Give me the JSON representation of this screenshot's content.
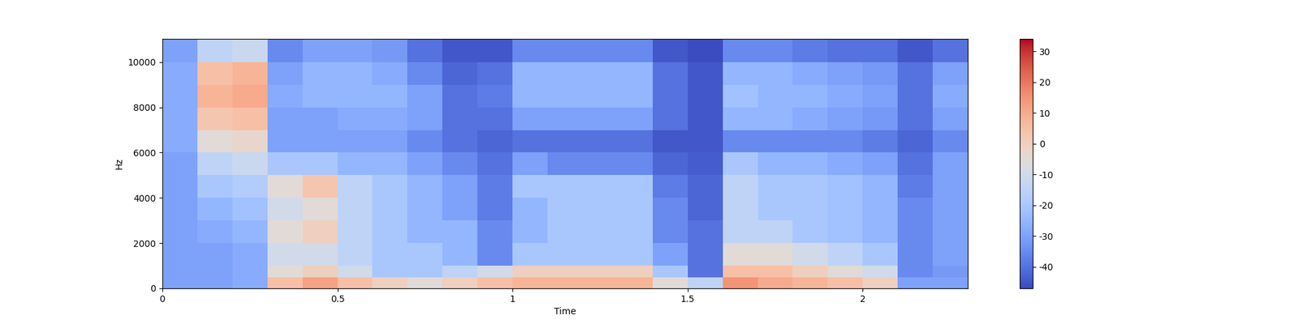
{
  "chart_data": {
    "type": "heatmap",
    "x_label": "Time",
    "y_label": "Hz",
    "x_edges": [
      0,
      0.1,
      0.2,
      0.3,
      0.4,
      0.5,
      0.6,
      0.7,
      0.8,
      0.9,
      1.0,
      1.1,
      1.2,
      1.3,
      1.4,
      1.5,
      1.6,
      1.7,
      1.8,
      1.9,
      2.0,
      2.1,
      2.2,
      2.3
    ],
    "y_edges": [
      0,
      500,
      1000,
      2000,
      3000,
      4000,
      5000,
      6000,
      7000,
      8000,
      9000,
      10000,
      11025
    ],
    "cells": [
      [
        -30,
        -30,
        -28,
        5,
        12,
        5,
        0,
        -5,
        0,
        5,
        8,
        8,
        8,
        8,
        -5,
        -15,
        15,
        10,
        8,
        5,
        0,
        -30,
        -30
      ],
      [
        -30,
        -30,
        -28,
        -5,
        0,
        -10,
        -20,
        -20,
        -15,
        -10,
        0,
        0,
        0,
        0,
        -20,
        -40,
        5,
        5,
        0,
        -5,
        -10,
        -35,
        -32
      ],
      [
        -30,
        -30,
        -28,
        -10,
        -10,
        -15,
        -20,
        -20,
        -25,
        -35,
        -20,
        -20,
        -20,
        -20,
        -30,
        -40,
        -5,
        -5,
        -10,
        -15,
        -20,
        -35,
        -30
      ],
      [
        -30,
        -28,
        -25,
        -5,
        0,
        -15,
        -20,
        -25,
        -25,
        -35,
        -25,
        -20,
        -20,
        -20,
        -35,
        -40,
        -15,
        -15,
        -20,
        -22,
        -25,
        -35,
        -30
      ],
      [
        -30,
        -25,
        -22,
        -10,
        -5,
        -15,
        -20,
        -25,
        -30,
        -38,
        -25,
        -20,
        -20,
        -20,
        -35,
        -42,
        -15,
        -20,
        -20,
        -22,
        -25,
        -35,
        -30
      ],
      [
        -30,
        -20,
        -18,
        -5,
        3,
        -15,
        -20,
        -25,
        -30,
        -38,
        -20,
        -20,
        -20,
        -20,
        -38,
        -42,
        -15,
        -20,
        -20,
        -22,
        -25,
        -38,
        -30
      ],
      [
        -30,
        -15,
        -12,
        -20,
        -20,
        -25,
        -25,
        -30,
        -35,
        -40,
        -30,
        -35,
        -35,
        -35,
        -42,
        -44,
        -20,
        -25,
        -25,
        -28,
        -30,
        -40,
        -30
      ],
      [
        -28,
        -5,
        -3,
        -30,
        -30,
        -30,
        -30,
        -35,
        -40,
        -42,
        -40,
        -40,
        -40,
        -40,
        -45,
        -45,
        -35,
        -35,
        -35,
        -35,
        -38,
        -42,
        -35
      ],
      [
        -28,
        3,
        5,
        -30,
        -30,
        -28,
        -28,
        -30,
        -40,
        -40,
        -30,
        -30,
        -30,
        -30,
        -40,
        -45,
        -25,
        -25,
        -28,
        -30,
        -32,
        -40,
        -30
      ],
      [
        -28,
        8,
        10,
        -28,
        -25,
        -25,
        -25,
        -30,
        -40,
        -38,
        -25,
        -25,
        -25,
        -25,
        -40,
        -45,
        -22,
        -25,
        -25,
        -28,
        -30,
        -40,
        -28
      ],
      [
        -28,
        5,
        8,
        -30,
        -25,
        -25,
        -28,
        -35,
        -42,
        -40,
        -25,
        -25,
        -25,
        -25,
        -40,
        -45,
        -25,
        -25,
        -28,
        -30,
        -32,
        -40,
        -30
      ],
      [
        -30,
        -15,
        -12,
        -35,
        -30,
        -30,
        -32,
        -40,
        -45,
        -45,
        -35,
        -35,
        -35,
        -35,
        -45,
        -47,
        -35,
        -35,
        -38,
        -40,
        -40,
        -45,
        -40
      ]
    ],
    "color": "coolwarm",
    "xlim": [
      0,
      2.3
    ],
    "xticks": [
      0,
      0.5,
      1,
      1.5,
      2
    ],
    "ylim": [
      0,
      11025
    ],
    "yticks": [
      0,
      2000,
      4000,
      6000,
      8000,
      10000
    ],
    "colorbar_range": [
      -47,
      34
    ],
    "colorbar_ticks": [
      -40,
      -30,
      -20,
      -10,
      0,
      10,
      20,
      30
    ]
  }
}
